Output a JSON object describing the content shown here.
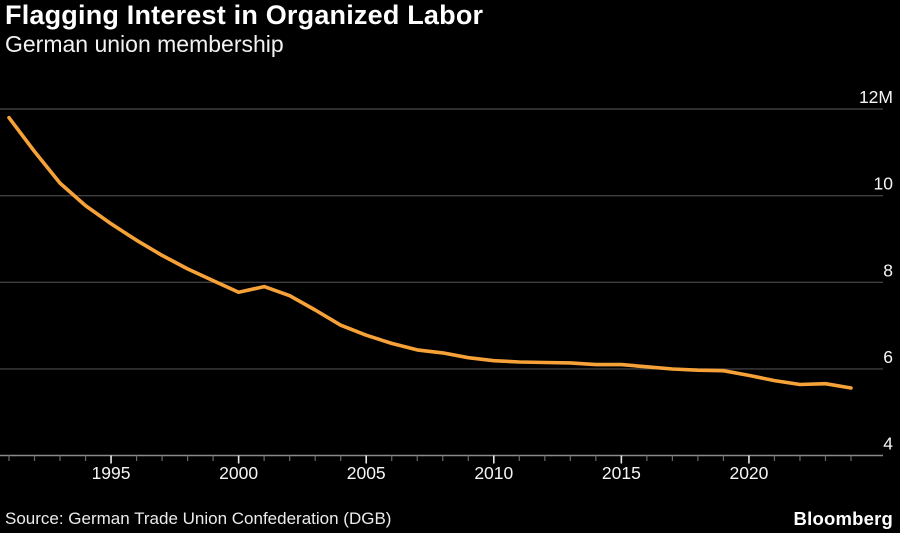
{
  "header": {
    "title": "Flagging Interest in Organized Labor",
    "subtitle": "German union membership"
  },
  "footer": {
    "source": "Source: German Trade Union Confederation (DGB)",
    "brand": "Bloomberg"
  },
  "colors": {
    "background": "#000000",
    "line": "#F7A238",
    "grid": "#3E3E3E",
    "axis": "#8A8A8A",
    "minor_tick": "#6A6A6A",
    "major_tick": "#E8E8E8",
    "label_text": "#F5F5F5"
  },
  "chart_data": {
    "type": "line",
    "title": "Flagging Interest in Organized Labor",
    "subtitle": "German union membership",
    "unit": "millions of members",
    "x": [
      1991,
      1992,
      1993,
      1994,
      1995,
      1996,
      1997,
      1998,
      1999,
      2000,
      2001,
      2002,
      2003,
      2004,
      2005,
      2006,
      2007,
      2008,
      2009,
      2010,
      2011,
      2012,
      2013,
      2014,
      2015,
      2016,
      2017,
      2018,
      2019,
      2020,
      2021,
      2022,
      2023,
      2024
    ],
    "values": [
      11.8,
      11.02,
      10.29,
      9.77,
      9.35,
      8.97,
      8.62,
      8.31,
      8.04,
      7.77,
      7.9,
      7.69,
      7.36,
      7.01,
      6.78,
      6.59,
      6.44,
      6.37,
      6.26,
      6.19,
      6.16,
      6.15,
      6.14,
      6.1,
      6.1,
      6.05,
      6.0,
      5.97,
      5.96,
      5.85,
      5.73,
      5.64,
      5.66,
      5.56
    ],
    "ylim": [
      4,
      12
    ],
    "yticks": [
      12,
      10,
      8,
      6,
      4
    ],
    "ytick_labels": [
      "12M",
      "10",
      "8",
      "6",
      "4"
    ],
    "xticks_major": [
      1995,
      2000,
      2005,
      2010,
      2015,
      2020
    ],
    "xtick_labels": [
      "1995",
      "2000",
      "2005",
      "2010",
      "2015",
      "2020"
    ],
    "grid": true,
    "legend_position": "none",
    "line_color": "#F7A238"
  }
}
